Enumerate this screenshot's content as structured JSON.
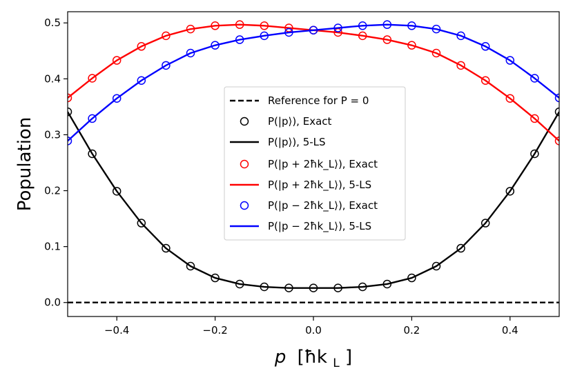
{
  "chart_data": {
    "type": "line",
    "xlabel": "p [ħk_L]",
    "xlabel_main": "p",
    "xlabel_unit_open": "[ħk",
    "xlabel_unit_sub": "L",
    "xlabel_unit_close": "]",
    "ylabel": "Population",
    "xlim": [
      -0.5,
      0.5
    ],
    "ylim": [
      -0.025,
      0.52
    ],
    "xticks": [
      -0.4,
      -0.2,
      0.0,
      0.2,
      0.4
    ],
    "xtick_labels": [
      "−0.4",
      "−0.2",
      "0.0",
      "0.2",
      "0.4"
    ],
    "yticks": [
      0.0,
      0.1,
      0.2,
      0.3,
      0.4,
      0.5
    ],
    "ytick_labels": [
      "0.0",
      "0.1",
      "0.2",
      "0.3",
      "0.4",
      "0.5"
    ],
    "grid": false,
    "legend_position": "center",
    "legend": [
      "Reference for P = 0",
      "P(|p⟩), Exact",
      "P(|p⟩), 5-LS",
      "P(|p + 2ħk_L⟩), Exact",
      "P(|p + 2ħk_L⟩), 5-LS",
      "P(|p − 2ħk_L⟩), Exact",
      "P(|p − 2ħk_L⟩), 5-LS"
    ],
    "colors": {
      "black": "#000000",
      "red": "#ff0000",
      "blue": "#0000ff"
    },
    "x": [
      -0.5,
      -0.45,
      -0.4,
      -0.35,
      -0.3,
      -0.25,
      -0.2,
      -0.15,
      -0.1,
      -0.05,
      0.0,
      0.05,
      0.1,
      0.15,
      0.2,
      0.25,
      0.3,
      0.35,
      0.4,
      0.45,
      0.5
    ],
    "series": [
      {
        "name": "Reference for P = 0",
        "style": "dashed",
        "color": "#000000",
        "x": [
          -0.5,
          0.5
        ],
        "values": [
          0.0,
          0.0
        ]
      },
      {
        "name": "P(|p⟩), Exact",
        "style": "markers",
        "color": "#000000",
        "values": [
          0.341,
          0.266,
          0.199,
          0.142,
          0.097,
          0.065,
          0.044,
          0.033,
          0.028,
          0.026,
          0.026,
          0.026,
          0.028,
          0.033,
          0.044,
          0.065,
          0.097,
          0.142,
          0.199,
          0.266,
          0.341
        ]
      },
      {
        "name": "P(|p⟩), 5-LS",
        "style": "line",
        "color": "#000000",
        "values": [
          0.341,
          0.266,
          0.199,
          0.142,
          0.097,
          0.065,
          0.044,
          0.033,
          0.028,
          0.026,
          0.026,
          0.026,
          0.028,
          0.033,
          0.044,
          0.065,
          0.097,
          0.142,
          0.199,
          0.266,
          0.341
        ]
      },
      {
        "name": "P(|p + 2ħk_L⟩), Exact",
        "style": "markers",
        "color": "#ff0000",
        "values": [
          0.366,
          0.401,
          0.433,
          0.458,
          0.477,
          0.489,
          0.495,
          0.497,
          0.495,
          0.491,
          0.487,
          0.483,
          0.477,
          0.47,
          0.46,
          0.446,
          0.424,
          0.397,
          0.365,
          0.329,
          0.289
        ]
      },
      {
        "name": "P(|p + 2ħk_L⟩), 5-LS",
        "style": "line",
        "color": "#ff0000",
        "values": [
          0.366,
          0.401,
          0.433,
          0.458,
          0.477,
          0.489,
          0.495,
          0.497,
          0.495,
          0.491,
          0.487,
          0.483,
          0.477,
          0.47,
          0.46,
          0.446,
          0.424,
          0.397,
          0.365,
          0.329,
          0.289
        ]
      },
      {
        "name": "P(|p − 2ħk_L⟩), Exact",
        "style": "markers",
        "color": "#0000ff",
        "values": [
          0.289,
          0.329,
          0.365,
          0.397,
          0.424,
          0.446,
          0.46,
          0.47,
          0.477,
          0.483,
          0.487,
          0.491,
          0.495,
          0.497,
          0.495,
          0.489,
          0.477,
          0.458,
          0.433,
          0.401,
          0.366
        ]
      },
      {
        "name": "P(|p − 2ħk_L⟩), 5-LS",
        "style": "line",
        "color": "#0000ff",
        "values": [
          0.289,
          0.329,
          0.365,
          0.397,
          0.424,
          0.446,
          0.46,
          0.47,
          0.477,
          0.483,
          0.487,
          0.491,
          0.495,
          0.497,
          0.495,
          0.489,
          0.477,
          0.458,
          0.433,
          0.401,
          0.366
        ]
      }
    ]
  }
}
